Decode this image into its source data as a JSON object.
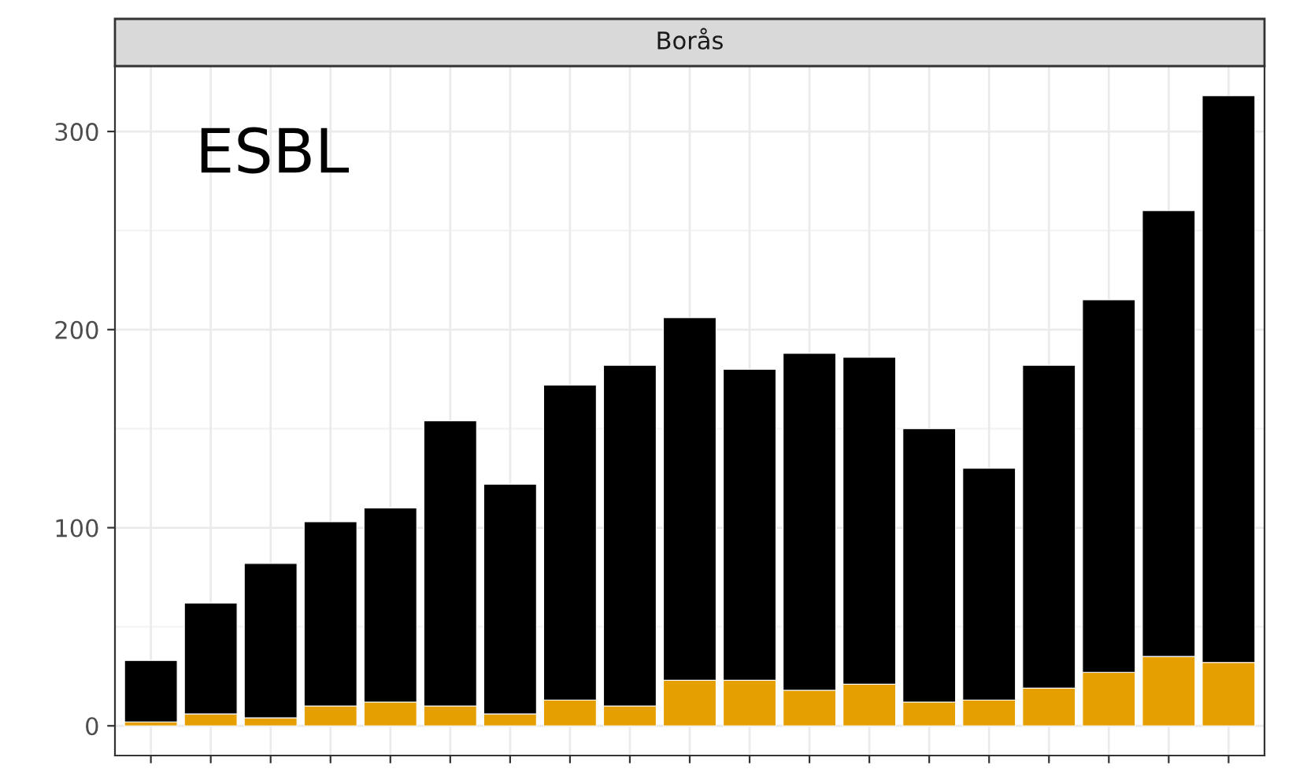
{
  "chart_data": {
    "type": "bar",
    "title": "Borås",
    "annotations": [
      "ESBL"
    ],
    "stacked": true,
    "categories": [
      null,
      null,
      null,
      null,
      null,
      null,
      null,
      null,
      null,
      null,
      null,
      null,
      null,
      null,
      null,
      null,
      null,
      null,
      null
    ],
    "series": [
      {
        "color": "#e69f00",
        "values": [
          2,
          6,
          4,
          10,
          12,
          10,
          6,
          13,
          10,
          23,
          23,
          18,
          21,
          12,
          13,
          19,
          27,
          35,
          32
        ]
      },
      {
        "color": "#000000",
        "values": [
          31,
          56,
          78,
          93,
          98,
          144,
          116,
          159,
          172,
          183,
          157,
          170,
          165,
          138,
          117,
          163,
          188,
          225,
          286
        ]
      }
    ],
    "ylim": [
      -15,
      333
    ],
    "yticks": [
      0,
      100,
      200,
      300
    ],
    "grid": true,
    "tick_labels": "y"
  }
}
